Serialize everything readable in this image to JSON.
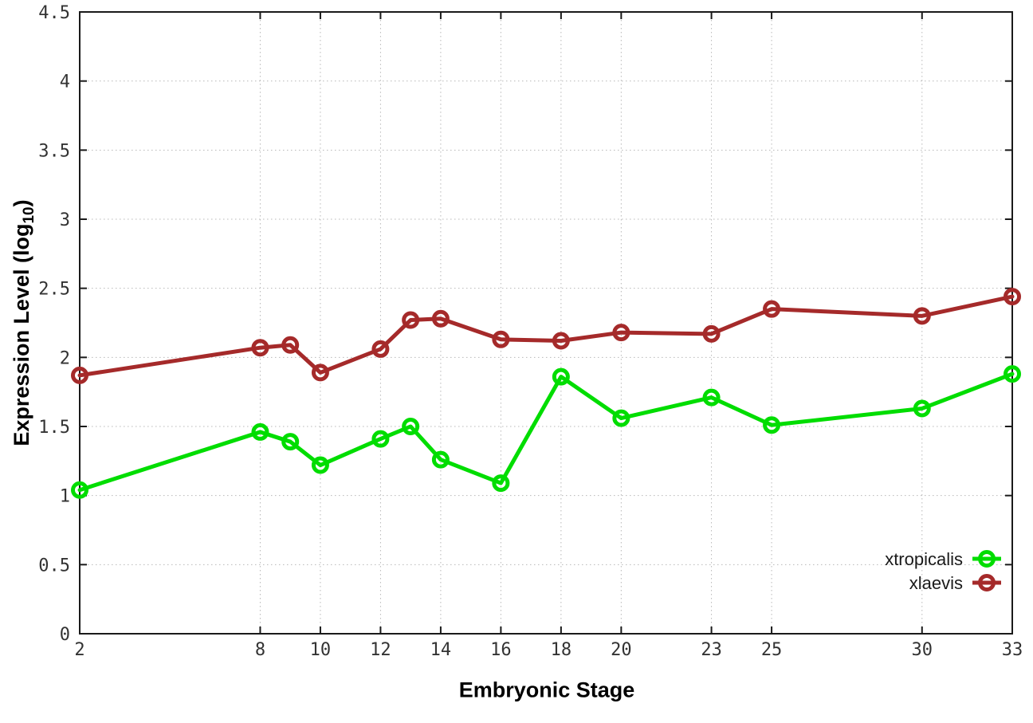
{
  "chart_data": {
    "type": "line",
    "title": "",
    "xlabel": "Embryonic Stage",
    "ylabel": "Expression Level (log10)",
    "ylabel_main": "Expression Level (log",
    "ylabel_sub": "10",
    "ylabel_suffix": ")",
    "x": [
      2,
      8,
      9,
      10,
      12,
      13,
      14,
      16,
      18,
      20,
      23,
      25,
      30,
      33
    ],
    "xlim": [
      2,
      33
    ],
    "ylim": [
      0,
      4.5
    ],
    "xticks": [
      "2",
      "8",
      "10",
      "12",
      "14",
      "16",
      "18",
      "20",
      "23",
      "25",
      "30",
      "33"
    ],
    "yticks": [
      "0",
      "0.5",
      "1",
      "1.5",
      "2",
      "2.5",
      "3",
      "3.5",
      "4",
      "4.5"
    ],
    "grid": true,
    "legend_position": "bottom-right",
    "series": [
      {
        "name": "xtropicalis",
        "color": "#00dd00",
        "values": [
          1.04,
          1.46,
          1.39,
          1.22,
          1.41,
          1.5,
          1.26,
          1.09,
          1.86,
          1.56,
          1.71,
          1.51,
          1.63,
          1.88
        ]
      },
      {
        "name": "xlaevis",
        "color": "#a52a2a",
        "values": [
          1.87,
          2.07,
          2.09,
          1.89,
          2.06,
          2.27,
          2.28,
          2.13,
          2.12,
          2.18,
          2.17,
          2.35,
          2.3,
          2.44
        ]
      }
    ]
  },
  "style_colors": {
    "axis": "#1a1a1a",
    "grid": "#b8b8b8",
    "tick_text": "#333333"
  }
}
